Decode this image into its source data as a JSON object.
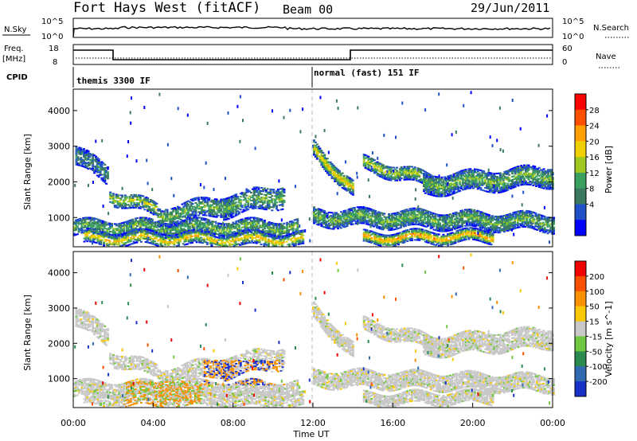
{
  "header": {
    "station": "Fort Hays West (fitACF)",
    "beam": "Beam 00",
    "date": "29/Jun/2011"
  },
  "status_panels": {
    "nsky_label": "N.Sky",
    "nsky_ticks": [
      "10^5",
      "10^0"
    ],
    "nsearch_label": "N.Search",
    "nsearch_ticks": [
      "10^5",
      "10^0"
    ],
    "freq_label": "Freq.",
    "freq_unit": "[MHz]",
    "freq_ticks": [
      "18",
      "8"
    ],
    "nave_label": "Nave",
    "nave_ticks": [
      "60",
      "0"
    ],
    "cpid_label": "CPID",
    "cpid_modes": [
      {
        "label": "themis 3300 IF",
        "start_hour": 0
      },
      {
        "label": "normal (fast) 151 IF",
        "start_hour": 12
      }
    ]
  },
  "chart_data": [
    {
      "type": "heatmap",
      "name": "power",
      "ylabel": "Slant Range [km]",
      "y_ticks": [
        "4000",
        "3000",
        "2000",
        "1000"
      ],
      "ylim": [
        180,
        4600
      ],
      "xlim": [
        0,
        24
      ],
      "colorbar_label": "Power [dB]",
      "colorbar_ticks": [
        "28",
        "24",
        "20",
        "16",
        "12",
        "8",
        "4"
      ],
      "colorbar_colors": [
        "#0000ff",
        "#2050c8",
        "#3a7860",
        "#3aa060",
        "#a0c820",
        "#f0d000",
        "#ffa000",
        "#ff5000",
        "#ff0000"
      ],
      "colorbar_range": [
        0,
        32
      ]
    },
    {
      "type": "heatmap",
      "name": "velocity",
      "ylabel": "Slant Range [km]",
      "y_ticks": [
        "4000",
        "3000",
        "2000",
        "1000"
      ],
      "ylim": [
        180,
        4600
      ],
      "xlim": [
        0,
        24
      ],
      "colorbar_label": "Velocity [m s^-1]",
      "colorbar_ticks": [
        "200",
        "100",
        "50",
        "15",
        "-15",
        "-50",
        "-100",
        "-200"
      ],
      "colorbar_colors": [
        "#1830c8",
        "#306ab0",
        "#2a8a50",
        "#70c840",
        "#c8c8c8",
        "#f8c800",
        "#f89000",
        "#f85000",
        "#f00000"
      ],
      "x_ticks": [
        "00:00",
        "04:00",
        "08:00",
        "12:00",
        "16:00",
        "20:00",
        "00:00"
      ],
      "xlabel": "Time UT"
    }
  ]
}
